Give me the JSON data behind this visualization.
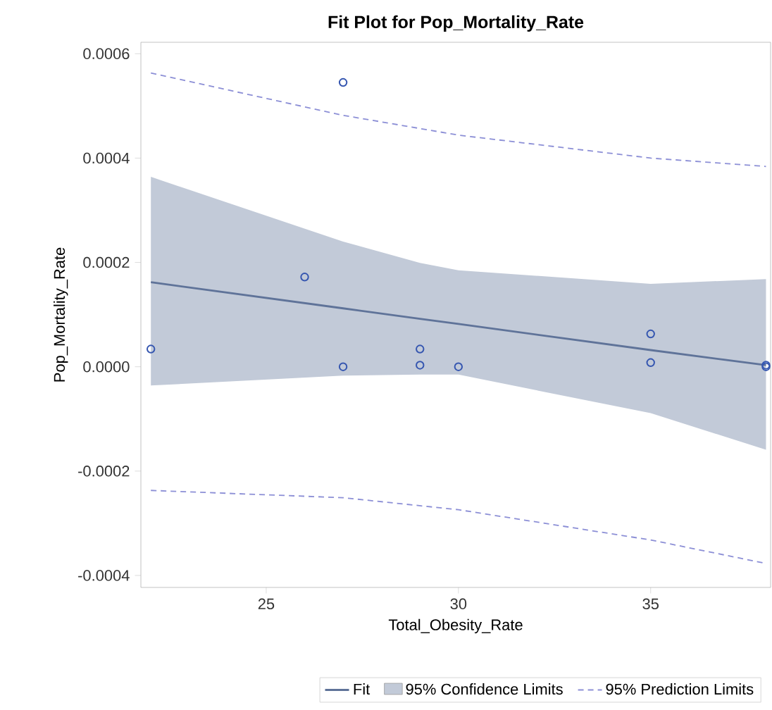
{
  "chart_data": {
    "type": "scatter",
    "title": "Fit Plot for Pop_Mortality_Rate",
    "xlabel": "Total_Obesity_Rate",
    "ylabel": "Pop_Mortality_Rate",
    "xlim": [
      21.74,
      38.12
    ],
    "ylim": [
      -0.000423,
      0.000622
    ],
    "xticks": [
      25,
      30,
      35
    ],
    "yticks": [
      {
        "value": 0.0006,
        "label": "0.0006"
      },
      {
        "value": 0.0004,
        "label": "0.0004"
      },
      {
        "value": 0.0002,
        "label": "0.0002"
      },
      {
        "value": 0,
        "label": "0.0000"
      },
      {
        "value": -0.0002,
        "label": "-0.0002"
      },
      {
        "value": -0.0004,
        "label": "-0.0004"
      }
    ],
    "grid": false,
    "legend": "bottom",
    "marker": "circle",
    "annotations": [
      "95% Confidence Limits"
    ],
    "series": [
      {
        "name": "Fit",
        "type": "line",
        "color": "#5f7399",
        "line_style": "solid",
        "marker": "none",
        "x": [
          22,
          27,
          29,
          30,
          35,
          38
        ],
        "values": [
          0.000162,
          0.000112,
          9.2e-05,
          8.2e-05,
          3.2e-05,
          3e-06
        ],
        "lower": [
          -3.6e-05,
          -1.7e-05,
          -1.5e-05,
          -1.5e-05,
          -8.9e-05,
          -0.000159
        ],
        "upper": [
          0.000364,
          0.00024,
          0.000199,
          0.000185,
          0.000159,
          0.000168
        ]
      },
      {
        "name": "95% Prediction Limits",
        "type": "line",
        "color": "#8c8fd6",
        "line_style": "dashed",
        "marker": "none",
        "x": [
          22,
          27,
          30,
          35,
          38
        ],
        "values": [
          0.000563,
          0.000482,
          0.000444,
          0.0004,
          0.000384
        ]
      },
      {
        "type": "line",
        "color": "#8c8fd6",
        "line_style": "dashed",
        "marker": "none",
        "x": [
          22,
          27,
          30,
          35,
          38
        ],
        "values": [
          -0.000237,
          -0.000251,
          -0.000274,
          -0.000332,
          -0.000377
        ]
      },
      {
        "color": "#3556b0",
        "x": [
          22,
          27,
          26,
          27,
          29,
          29,
          30,
          35,
          35,
          38,
          38
        ],
        "values": [
          3.4e-05,
          0.000545,
          0.000172,
          0,
          3.4e-05,
          3e-06,
          0,
          6.3e-05,
          8e-06,
          3e-06,
          0
        ]
      }
    ]
  }
}
